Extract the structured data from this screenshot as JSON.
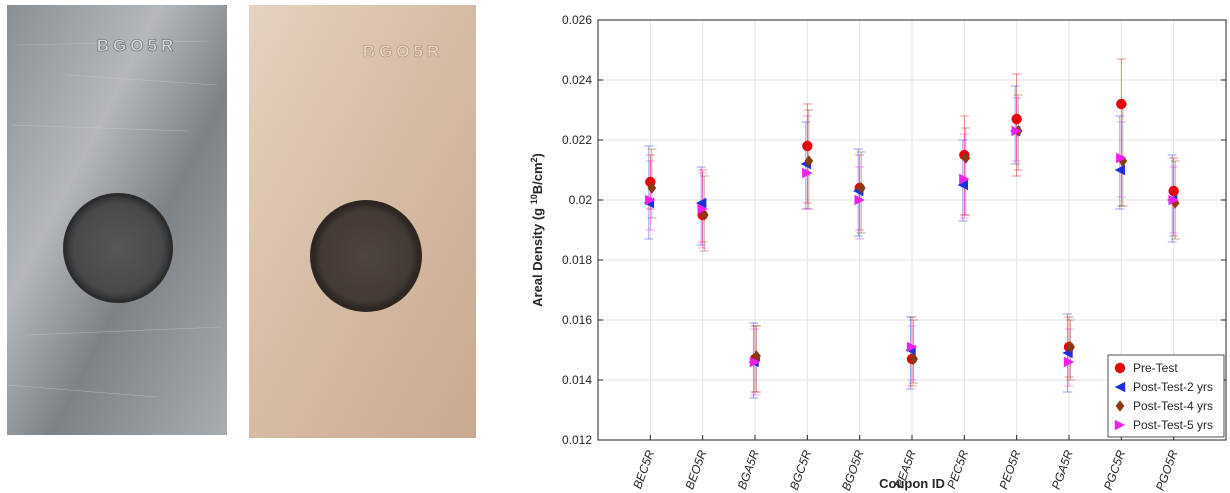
{
  "photos": {
    "left": {
      "stamp": "BGO5R"
    },
    "right": {
      "stamp": "BGO5R"
    }
  },
  "colors": {
    "pre_test": "#e8000b",
    "post_2": "#1f2fd6",
    "post_4": "#8b3a0f",
    "post_5": "#f020f0"
  },
  "chart_data": {
    "type": "scatter",
    "xlabel": "Coupon ID",
    "ylabel_main": "Areal Density (g ",
    "ylabel_sup1": "10",
    "ylabel_mid": "B/cm",
    "ylabel_sup2": "2",
    "ylabel_end": ")",
    "ylim": [
      0.012,
      0.026
    ],
    "yticks": [
      "0.012",
      "0.014",
      "0.016",
      "0.018",
      "0.02",
      "0.022",
      "0.024",
      "0.026"
    ],
    "categories": [
      "BEC5R",
      "BEO5R",
      "BGA5R",
      "BGC5R",
      "BGO5R",
      "PEA5R",
      "PEC5R",
      "PEO5R",
      "PGA5R",
      "PGC5R",
      "PGO5R"
    ],
    "grid": true,
    "legend_position": "bottom-right",
    "series": [
      {
        "name": "Pre-Test",
        "marker": "circle",
        "color": "#e8000b",
        "values": [
          0.0206,
          0.0195,
          0.0147,
          0.0218,
          0.0204,
          0.0147,
          0.0215,
          0.0227,
          0.0151,
          0.0232,
          0.0203
        ],
        "err_low": [
          0.0197,
          0.0186,
          0.0136,
          0.0199,
          0.019,
          0.0138,
          0.0195,
          0.0208,
          0.0141,
          0.0198,
          0.0188
        ],
        "err_high": [
          0.0215,
          0.021,
          0.0158,
          0.0232,
          0.0215,
          0.0161,
          0.0228,
          0.0242,
          0.0161,
          0.0247,
          0.0214
        ]
      },
      {
        "name": "Post-Test-2 yrs",
        "marker": "triangle-left",
        "color": "#1f2fd6",
        "values": [
          0.0199,
          0.0199,
          0.0146,
          0.0212,
          0.0203,
          0.015,
          0.0205,
          0.0223,
          0.0149,
          0.021,
          0.02
        ],
        "err_low": [
          0.0187,
          0.0185,
          0.0134,
          0.0197,
          0.0188,
          0.0137,
          0.0193,
          0.0212,
          0.0136,
          0.0197,
          0.0186
        ],
        "err_high": [
          0.0218,
          0.0211,
          0.0159,
          0.0226,
          0.0217,
          0.0161,
          0.022,
          0.0238,
          0.0162,
          0.0228,
          0.0215
        ]
      },
      {
        "name": "Post-Test-4 yrs",
        "marker": "diamond",
        "color": "#8b3a0f",
        "values": [
          0.0204,
          0.0195,
          0.0148,
          0.0213,
          0.0204,
          0.0147,
          0.0214,
          0.0223,
          0.0151,
          0.0213,
          0.0199
        ],
        "err_low": [
          0.0194,
          0.0183,
          0.0136,
          0.0197,
          0.0189,
          0.0139,
          0.0195,
          0.021,
          0.014,
          0.0198,
          0.0187
        ],
        "err_high": [
          0.0217,
          0.0208,
          0.0158,
          0.023,
          0.0216,
          0.016,
          0.0224,
          0.0235,
          0.016,
          0.0232,
          0.0213
        ]
      },
      {
        "name": "Post-Test-5 yrs",
        "marker": "triangle-right",
        "color": "#f020f0",
        "values": [
          0.02,
          0.0197,
          0.0146,
          0.0209,
          0.02,
          0.0151,
          0.0207,
          0.0223,
          0.0146,
          0.0214,
          0.02
        ],
        "err_low": [
          0.019,
          0.0184,
          0.0135,
          0.0197,
          0.0187,
          0.014,
          0.0194,
          0.0213,
          0.0138,
          0.0201,
          0.0189
        ],
        "err_high": [
          0.0213,
          0.0209,
          0.0157,
          0.0228,
          0.0211,
          0.0158,
          0.0222,
          0.0234,
          0.0157,
          0.0226,
          0.0211
        ]
      }
    ]
  }
}
